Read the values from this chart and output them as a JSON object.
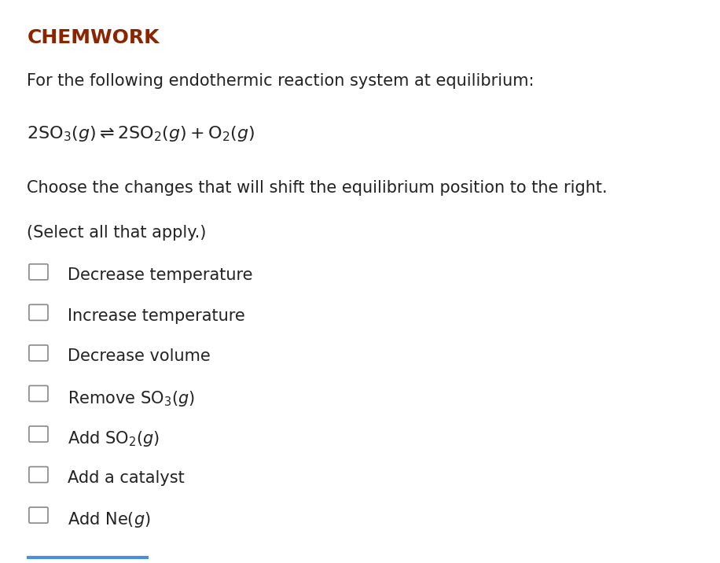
{
  "title": "CHEMWORK",
  "title_color": "#8B2500",
  "background_color": "#ffffff",
  "intro_line": "For the following endothermic reaction system at equilibrium:",
  "instruction": "Choose the changes that will shift the equilibrium position to the right.",
  "select_note": "(Select all that apply.)",
  "checkbox_color": "#888888",
  "text_color": "#222222",
  "font_size_title": 18,
  "font_size_body": 15,
  "font_size_options": 15,
  "bottom_line_color": "#4a90d9"
}
